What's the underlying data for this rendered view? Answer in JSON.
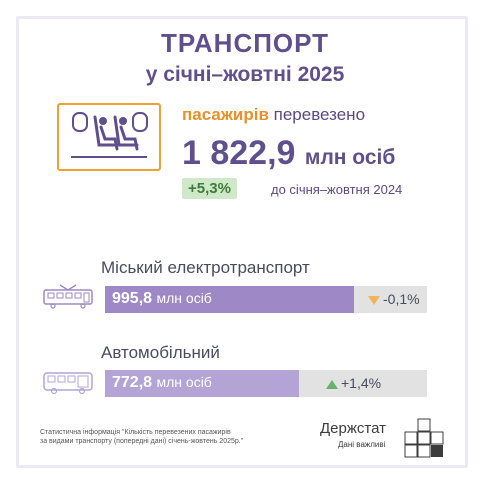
{
  "header": {
    "title": "ТРАНСПОРТ",
    "subtitle": "у січні–жовтні 2025"
  },
  "summary": {
    "passengers_highlight": "пасажирів",
    "passengers_text": " перевезено",
    "total_value": "1 822,9",
    "total_unit": "млн осіб",
    "change_value": "+5,3%",
    "change_text": "до січня–жовтня 2024",
    "icon": "passenger-seats-icon",
    "accent_color": "#f0a030"
  },
  "rows": [
    {
      "label": "Міський електротранспорт",
      "value": "995,8",
      "unit": "млн осіб",
      "change": "-0,1%",
      "direction": "down",
      "share": 0.7745,
      "icon": "tram-icon"
    },
    {
      "label": "Автомобільний",
      "value": "772,8",
      "unit": "млн осіб",
      "change": "+1,4%",
      "direction": "up",
      "share": 0.601,
      "icon": "bus-icon"
    }
  ],
  "footer": {
    "note_line1": "Статистична інформація \"Кількість перевезених пасажирів",
    "note_line2": "за видами транспорту (попередні дані) січень-жовтень 2025р.\"",
    "logo_name": "Держстат",
    "logo_slogan": "Дані важливі"
  }
}
